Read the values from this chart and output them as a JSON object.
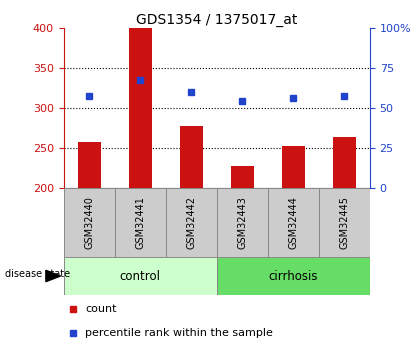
{
  "title": "GDS1354 / 1375017_at",
  "samples": [
    "GSM32440",
    "GSM32441",
    "GSM32442",
    "GSM32443",
    "GSM32444",
    "GSM32445"
  ],
  "bar_values": [
    257,
    400,
    277,
    227,
    253,
    263
  ],
  "bar_bottom": 200,
  "percentile_values": [
    315,
    335,
    320,
    309,
    312,
    315
  ],
  "left_ylim": [
    200,
    400
  ],
  "right_ylim": [
    0,
    100
  ],
  "left_yticks": [
    200,
    250,
    300,
    350,
    400
  ],
  "right_yticks": [
    0,
    25,
    50,
    75,
    100
  ],
  "right_yticklabels": [
    "0",
    "25",
    "50",
    "75",
    "100%"
  ],
  "bar_color": "#cc1111",
  "dot_color": "#2244cc",
  "grid_yticks": [
    250,
    300,
    350
  ],
  "group_labels": [
    "control",
    "cirrhosis"
  ],
  "control_color": "#ccffcc",
  "cirrhosis_color": "#66dd66",
  "sample_box_color": "#cccccc",
  "xlabel_group": "disease state",
  "legend_bar_label": "count",
  "legend_dot_label": "percentile rank within the sample",
  "title_fontsize": 10,
  "tick_fontsize": 8,
  "group_fontsize": 8.5,
  "legend_fontsize": 8,
  "sample_fontsize": 7
}
